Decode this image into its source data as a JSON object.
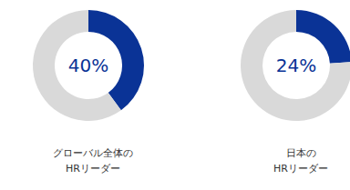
{
  "chart_data": [
    {
      "type": "donut",
      "title": "グローバル全体の\nHRリーダー",
      "values": [
        40,
        60
      ],
      "value_labels": [
        "40%",
        null
      ],
      "colors": [
        "#0a3396",
        "#d9d9d9"
      ],
      "data_labels": true
    },
    {
      "type": "donut",
      "title": "日本の\nHRリーダー",
      "values": [
        24,
        76
      ],
      "value_labels": [
        "24%",
        null
      ],
      "colors": [
        "#0a3396",
        "#d9d9d9"
      ],
      "data_labels": true
    }
  ]
}
